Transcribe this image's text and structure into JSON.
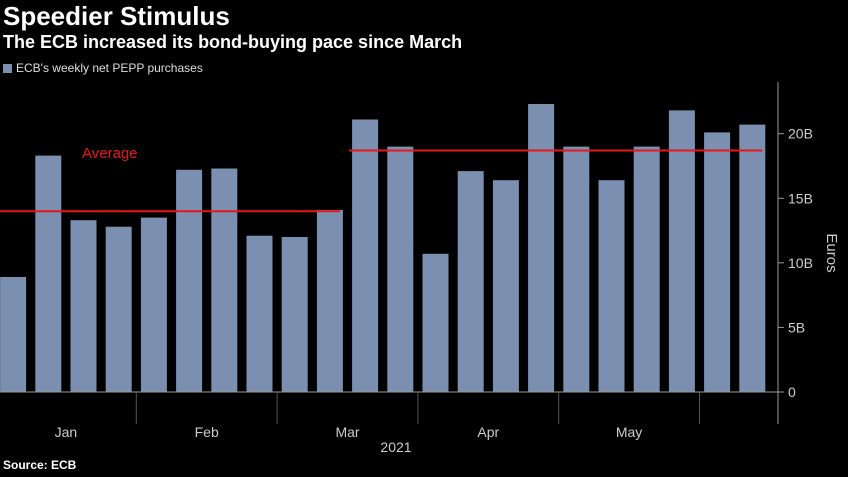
{
  "header": {
    "title": "Speedier Stimulus",
    "subtitle": "The ECB increased its bond-buying pace since March"
  },
  "source": "Source: ECB",
  "colors": {
    "bar": "#7b8fb0",
    "average": "#e8161b",
    "axis": "#9a9a9a",
    "background": "#000000"
  },
  "chart_data": {
    "type": "bar",
    "title": "Speedier Stimulus",
    "subtitle": "The ECB increased its bond-buying pace since March",
    "legend": {
      "entries": [
        "ECB's weekly net PEPP purchases"
      ],
      "placement": "top-left"
    },
    "series": [
      {
        "name": "ECB's weekly net PEPP purchases",
        "values": [
          8.9,
          18.3,
          13.3,
          12.8,
          13.5,
          17.2,
          17.3,
          12.1,
          12.0,
          14.1,
          21.1,
          19.0,
          10.7,
          17.1,
          16.4,
          22.3,
          19.0,
          16.4,
          19.0,
          21.8,
          20.1,
          20.7
        ]
      }
    ],
    "x_month_labels": [
      {
        "label": "Jan",
        "position": 1.5
      },
      {
        "label": "Feb",
        "position": 5.5
      },
      {
        "label": "Mar",
        "position": 9.5
      },
      {
        "label": "Apr",
        "position": 13.5
      },
      {
        "label": "May",
        "position": 17.5
      }
    ],
    "x_minor_ticks": [
      3.5,
      7.5,
      11.5,
      15.5,
      19.5
    ],
    "xlabel": "2021",
    "ylabel": "Euros",
    "ylim": [
      0,
      24
    ],
    "yticks": [
      {
        "value": 0,
        "label": "0"
      },
      {
        "value": 5,
        "label": "5B"
      },
      {
        "value": 10,
        "label": "10B"
      },
      {
        "value": 15,
        "label": "15B"
      },
      {
        "value": 20,
        "label": "20B"
      }
    ],
    "grid": false,
    "averages": [
      {
        "label": "Average",
        "value": 14.0,
        "from_index": 0,
        "to_index": 9
      },
      {
        "label": "",
        "value": 18.7,
        "from_index": 10,
        "to_index": 21
      }
    ]
  }
}
